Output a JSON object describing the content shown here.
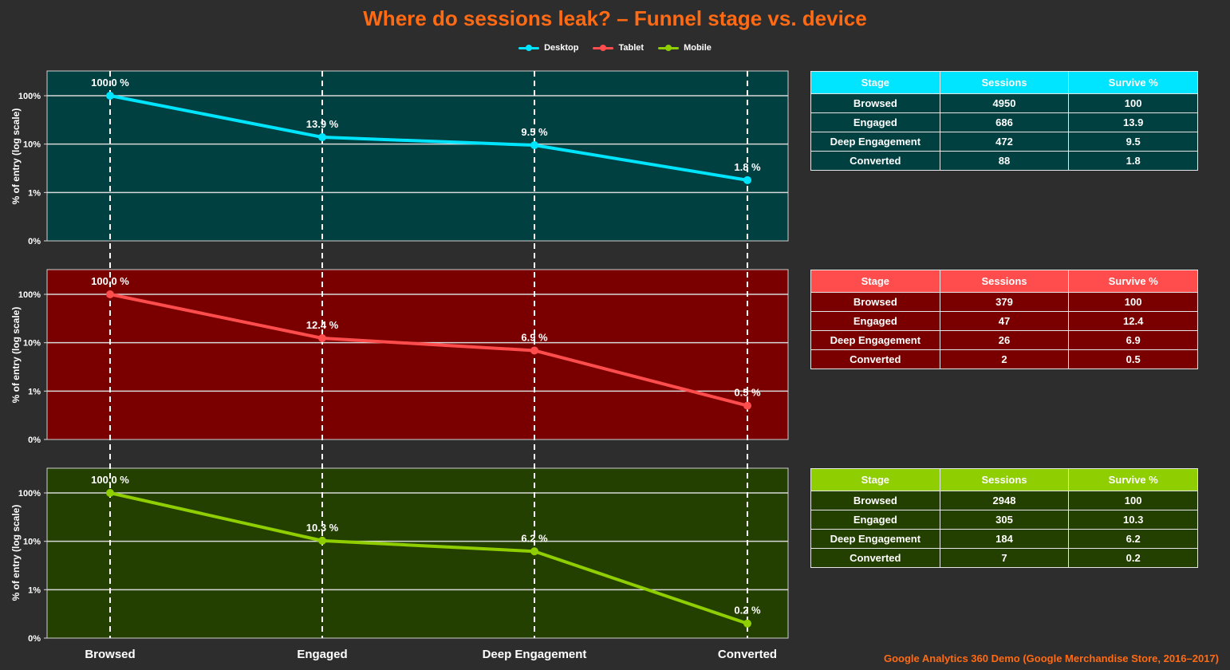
{
  "title": "Where do sessions leak? – Funnel stage vs. device",
  "footer": "Google Analytics 360 Demo (Google Merchandise Store, 2016–2017)",
  "colors": {
    "background": "#2d2d2d",
    "title": "#ff6a13",
    "desktop": "#00e5ff",
    "tablet": "#ff4d4d",
    "mobile": "#8fce00",
    "desktop_panel": "#004040",
    "tablet_panel": "#7a0000",
    "mobile_panel": "#244000"
  },
  "legend": [
    {
      "name": "Desktop",
      "color": "#00e5ff"
    },
    {
      "name": "Tablet",
      "color": "#ff4d4d"
    },
    {
      "name": "Mobile",
      "color": "#8fce00"
    }
  ],
  "chart_data": {
    "type": "line",
    "x": [
      "Browsed",
      "Engaged",
      "Deep Engagement",
      "Converted"
    ],
    "ylabel": "% of entry (log scale)",
    "yscale": "log",
    "yticks": [
      "0%",
      "1%",
      "10%",
      "100%"
    ],
    "grid": true,
    "legend_position": "top-center",
    "series": [
      {
        "name": "Desktop",
        "values": [
          100.0,
          13.9,
          9.5,
          1.8
        ],
        "labels": [
          "100.0 %",
          "13.9 %",
          "9.5 %",
          "1.8 %"
        ]
      },
      {
        "name": "Tablet",
        "values": [
          100.0,
          12.4,
          6.9,
          0.5
        ],
        "labels": [
          "100.0 %",
          "12.4 %",
          "6.9 %",
          "0.5 %"
        ]
      },
      {
        "name": "Mobile",
        "values": [
          100.0,
          10.3,
          6.2,
          0.2
        ],
        "labels": [
          "100.0 %",
          "10.3 %",
          "6.2 %",
          "0.2 %"
        ]
      }
    ]
  },
  "tables": [
    {
      "headers": [
        "Stage",
        "Sessions",
        "Survive %"
      ],
      "rows": [
        [
          "Browsed",
          "4950",
          "100"
        ],
        [
          "Engaged",
          "686",
          "13.9"
        ],
        [
          "Deep Engagement",
          "472",
          "9.5"
        ],
        [
          "Converted",
          "88",
          "1.8"
        ]
      ]
    },
    {
      "headers": [
        "Stage",
        "Sessions",
        "Survive %"
      ],
      "rows": [
        [
          "Browsed",
          "379",
          "100"
        ],
        [
          "Engaged",
          "47",
          "12.4"
        ],
        [
          "Deep Engagement",
          "26",
          "6.9"
        ],
        [
          "Converted",
          "2",
          "0.5"
        ]
      ]
    },
    {
      "headers": [
        "Stage",
        "Sessions",
        "Survive %"
      ],
      "rows": [
        [
          "Browsed",
          "2948",
          "100"
        ],
        [
          "Engaged",
          "305",
          "10.3"
        ],
        [
          "Deep Engagement",
          "184",
          "6.2"
        ],
        [
          "Converted",
          "7",
          "0.2"
        ]
      ]
    }
  ]
}
